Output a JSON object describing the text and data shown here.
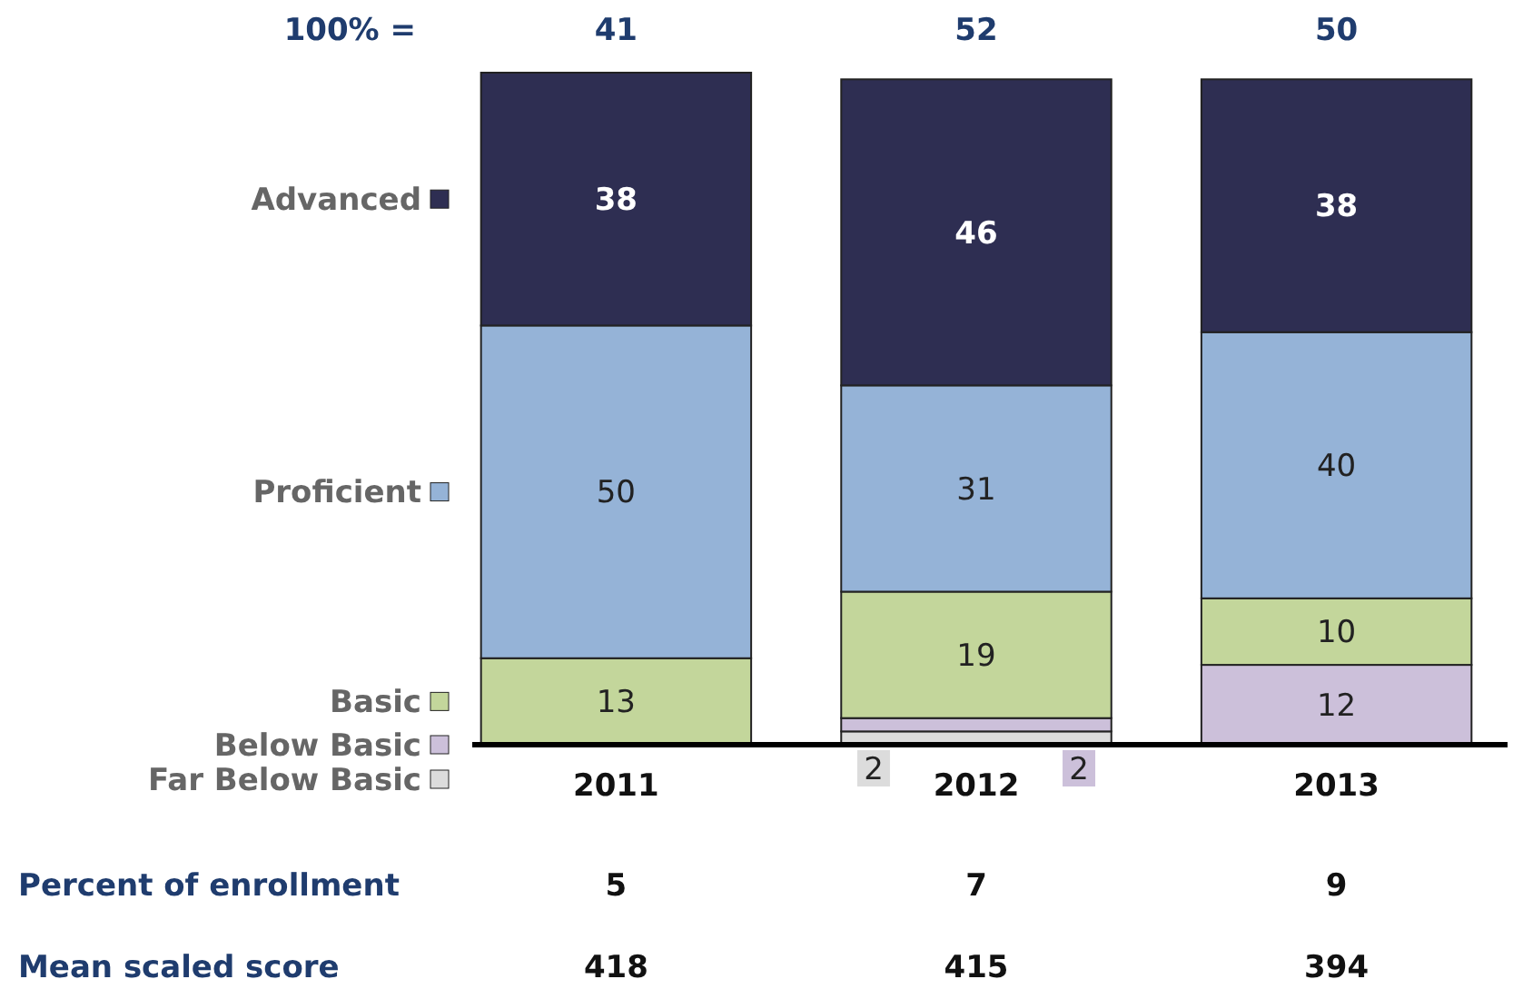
{
  "chart_data": {
    "type": "bar",
    "stacked": true,
    "categories": [
      "2011",
      "2012",
      "2013"
    ],
    "ylim": [
      0,
      101
    ],
    "tick_labels": "x",
    "legend": "left",
    "series": [
      {
        "name": "Far Below Basic",
        "color": "#dcdcdc",
        "values": [
          0,
          2,
          0
        ],
        "value_labels": [
          null,
          "2",
          null
        ]
      },
      {
        "name": "Below Basic",
        "color": "#ccc0da",
        "values": [
          0,
          2,
          12
        ],
        "value_labels": [
          null,
          "2",
          "12"
        ]
      },
      {
        "name": "Basic",
        "color": "#c3d69b",
        "values": [
          13,
          19,
          10
        ],
        "value_labels": [
          "13",
          "19",
          "10"
        ]
      },
      {
        "name": "Proficient",
        "color": "#95b3d7",
        "values": [
          50,
          31,
          40
        ],
        "value_labels": [
          "50",
          "31",
          "40"
        ]
      },
      {
        "name": "Advanced",
        "color": "#2e2e52",
        "values": [
          38,
          46,
          38
        ],
        "value_labels": [
          "38",
          "46",
          "38"
        ]
      }
    ],
    "annotations": [
      "100% =",
      "41",
      "52",
      "50",
      "Percent of enrollment",
      "5",
      "7",
      "9",
      "Mean scaled score",
      "418",
      "415",
      "394"
    ]
  }
}
